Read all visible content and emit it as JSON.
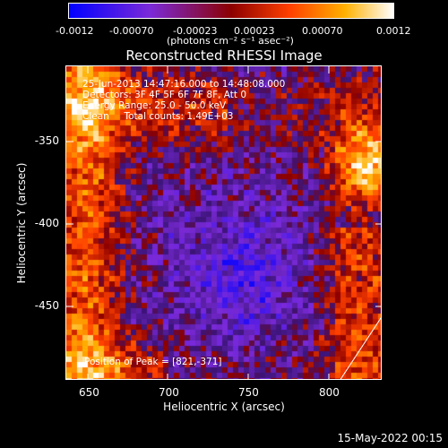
{
  "colorbar": {
    "ticks": [
      "-0.0012",
      "-0.00070",
      "-0.00023",
      "0.00023",
      "0.00070",
      "0.0012"
    ],
    "units": "(photons cm⁻² s⁻¹ asec⁻²)",
    "colors": [
      "#0000ff",
      "#7b2ad8",
      "#8c0000",
      "#ff4000",
      "#ffb000",
      "#ffffff"
    ]
  },
  "title": "Reconstructed RHESSI Image",
  "annotations": {
    "time_range": "25-Jun-2013 14:47:16.000 to 14:48:08.000",
    "detectors": "Detectors: 3F 4F 5F 6F 7F 8F, Att 0",
    "energy_range": "Energy Range: 25.0 - 50.0 keV",
    "clean_counts": "Clean     Total counts: 1.49E+03",
    "peak_position": "Position of Peak = [821,-371]"
  },
  "axes": {
    "xlabel": "Heliocentric X (arcsec)",
    "ylabel": "Heliocentric Y (arcsec)",
    "xticks": [
      "650",
      "700",
      "750",
      "800"
    ],
    "yticks": [
      "-350",
      "-400",
      "-450"
    ]
  },
  "timestamp": "15-May-2022 00:15"
}
